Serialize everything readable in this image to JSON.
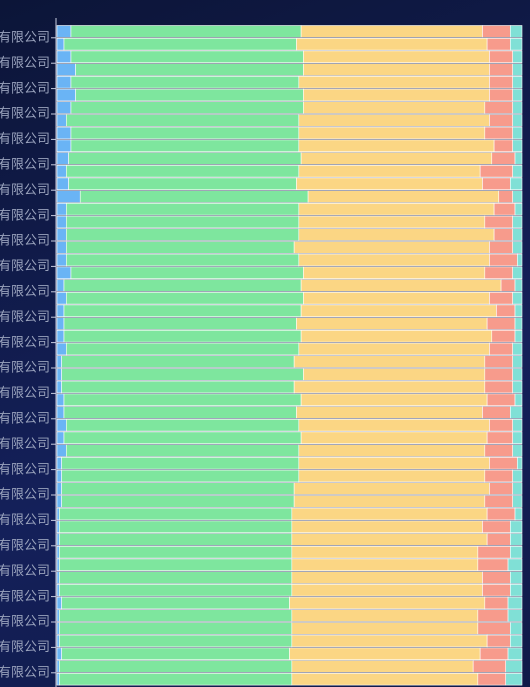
{
  "chart_data": {
    "type": "stacked_bar",
    "orientation": "horizontal",
    "xlim": [
      0,
      100
    ],
    "categories": [
      "有限公司",
      "有限公司",
      "有限公司",
      "有限公司",
      "有限公司",
      "有限公司",
      "有限公司",
      "有限公司",
      "有限公司",
      "有限公司",
      "有限公司",
      "有限公司",
      "有限公司",
      "有限公司",
      "有限公司",
      "有限公司",
      "有限公司",
      "有限公司",
      "有限公司",
      "有限公司",
      "有限公司",
      "有限公司",
      "有限公司",
      "有限公司",
      "有限公司",
      "有限公司"
    ],
    "series": [
      {
        "stack": "a",
        "color": "#6ab4f5",
        "values": [
          3,
          3,
          3,
          3,
          3,
          2.5,
          2.5,
          2,
          2,
          2,
          1.5,
          1.5,
          1.5,
          1,
          1,
          1.5,
          1.5,
          1,
          1,
          0.5,
          0.5,
          0.5,
          0.5,
          0.5,
          0.5,
          0.5
        ]
      },
      {
        "stack": "a",
        "color": "#7ee69e",
        "values": [
          49.5,
          50,
          49,
          50,
          49,
          50,
          49,
          50,
          50,
          50,
          51,
          51,
          51,
          50,
          50,
          50,
          51,
          51,
          50,
          50,
          50,
          50,
          50,
          50,
          50,
          50
        ]
      },
      {
        "stack": "a",
        "color": "#fbd684",
        "values": [
          39,
          40,
          41,
          39,
          40,
          41,
          40,
          42,
          42,
          41,
          43,
          42,
          41,
          41,
          41,
          40,
          40,
          41,
          42,
          42,
          42,
          40,
          41,
          40,
          42,
          39
        ]
      },
      {
        "stack": "a",
        "color": "#f79b8c",
        "values": [
          6,
          5,
          5,
          6,
          6,
          5,
          6,
          4.5,
          4,
          6,
          3,
          4,
          5,
          6,
          6,
          6,
          5.5,
          6,
          5,
          6,
          5,
          6.5,
          6,
          6.5,
          5,
          7
        ]
      },
      {
        "stack": "a",
        "color": "#80e0d6",
        "values": [
          2.5,
          2,
          2,
          2,
          2,
          1.5,
          2.5,
          1.5,
          2,
          1,
          1.5,
          1.5,
          1.5,
          2,
          2,
          2.5,
          2,
          1,
          2,
          1.5,
          2.5,
          3,
          2.5,
          3,
          2.5,
          3.5
        ]
      },
      {
        "stack": "b",
        "color": "#6ab4f5",
        "values": [
          1.5,
          4,
          4,
          2,
          3,
          2,
          5,
          2,
          2,
          3,
          2,
          1.5,
          2,
          1,
          1.5,
          2,
          2,
          1,
          1,
          0.5,
          0.5,
          0.5,
          1,
          0.5,
          1,
          0.5
        ]
      },
      {
        "stack": "b",
        "color": "#7ee69e",
        "values": [
          50,
          49,
          49,
          50,
          49,
          50,
          49,
          50,
          49,
          50,
          51,
          50,
          50,
          52,
          51,
          50,
          50,
          51,
          50,
          50,
          50,
          50,
          49,
          50,
          49,
          50
        ]
      },
      {
        "stack": "b",
        "color": "#fbd684",
        "values": [
          41,
          40,
          40,
          41,
          42,
          39,
          41,
          40,
          42,
          39,
          40,
          41,
          41,
          39,
          40,
          41,
          40,
          40,
          41,
          41,
          40,
          41,
          42,
          40,
          41,
          40
        ]
      },
      {
        "stack": "b",
        "color": "#f79b8c",
        "values": [
          5,
          5,
          5,
          5,
          4,
          7,
          3,
          6,
          5,
          6,
          5,
          6,
          5,
          6,
          6,
          5,
          6,
          6,
          6,
          6,
          7,
          6,
          5,
          7,
          6,
          6
        ]
      },
      {
        "stack": "b",
        "color": "#80e0d6",
        "values": [
          2.5,
          2,
          2,
          2,
          2,
          2,
          2,
          2,
          2,
          2,
          2,
          1.5,
          2,
          2,
          1.5,
          2,
          2,
          2,
          2,
          2.5,
          2.5,
          2.5,
          3,
          2.5,
          3,
          3.5
        ]
      }
    ]
  }
}
